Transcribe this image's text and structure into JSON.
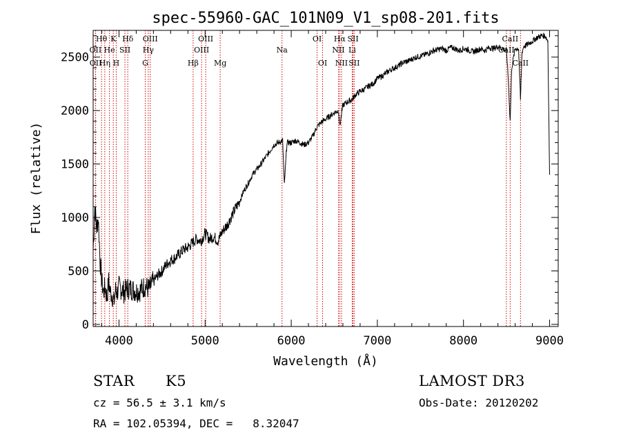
{
  "chart_data": {
    "type": "line",
    "title": "spec-55960-GAC_101N09_V1_sp08-201.fits",
    "xlabel": "Wavelength (Å)",
    "ylabel": "Flux (relative)",
    "xlim": [
      3700,
      9100
    ],
    "ylim": [
      -20,
      2750
    ],
    "xticks": [
      4000,
      5000,
      6000,
      7000,
      8000,
      9000
    ],
    "yticks": [
      0,
      500,
      1000,
      1500,
      2000,
      2500
    ],
    "xtick_labels": [
      "4000",
      "5000",
      "6000",
      "7000",
      "8000",
      "9000"
    ],
    "ytick_labels": [
      "0",
      "500",
      "1000",
      "1500",
      "2000",
      "2500"
    ],
    "series": [
      {
        "name": "spectrum",
        "x": [
          3700,
          3720,
          3740,
          3760,
          3780,
          3800,
          3820,
          3840,
          3860,
          3880,
          3900,
          3920,
          3940,
          3960,
          3980,
          4000,
          4030,
          4060,
          4100,
          4150,
          4200,
          4250,
          4300,
          4350,
          4400,
          4450,
          4500,
          4550,
          4600,
          4650,
          4700,
          4750,
          4800,
          4850,
          4900,
          4950,
          5000,
          5050,
          5100,
          5150,
          5200,
          5250,
          5300,
          5350,
          5400,
          5450,
          5500,
          5550,
          5600,
          5650,
          5700,
          5750,
          5800,
          5850,
          5900,
          5920,
          5950,
          6000,
          6050,
          6100,
          6150,
          6200,
          6250,
          6300,
          6350,
          6400,
          6450,
          6500,
          6550,
          6563,
          6600,
          6650,
          6700,
          6750,
          6800,
          6850,
          6900,
          6950,
          7000,
          7050,
          7100,
          7150,
          7200,
          7250,
          7300,
          7350,
          7400,
          7450,
          7500,
          7550,
          7600,
          7650,
          7700,
          7750,
          7800,
          7850,
          7900,
          7950,
          8000,
          8050,
          8100,
          8150,
          8200,
          8250,
          8300,
          8350,
          8400,
          8450,
          8500,
          8520,
          8542,
          8560,
          8600,
          8640,
          8662,
          8680,
          8700,
          8750,
          8800,
          8850,
          8900,
          8950,
          8980,
          9000
        ],
        "y": [
          700,
          1100,
          900,
          1000,
          600,
          400,
          300,
          350,
          250,
          400,
          300,
          280,
          200,
          320,
          300,
          350,
          330,
          300,
          340,
          330,
          310,
          320,
          360,
          330,
          400,
          460,
          500,
          560,
          600,
          620,
          660,
          700,
          720,
          760,
          800,
          780,
          850,
          800,
          820,
          780,
          870,
          920,
          1000,
          1080,
          1150,
          1250,
          1320,
          1400,
          1450,
          1500,
          1560,
          1620,
          1680,
          1700,
          1720,
          1300,
          1700,
          1700,
          1720,
          1700,
          1680,
          1700,
          1760,
          1850,
          1890,
          1920,
          1950,
          1980,
          2000,
          1850,
          2050,
          2080,
          2100,
          2150,
          2180,
          2200,
          2230,
          2250,
          2300,
          2320,
          2350,
          2380,
          2400,
          2420,
          2450,
          2460,
          2480,
          2500,
          2510,
          2520,
          2540,
          2560,
          2570,
          2580,
          2560,
          2590,
          2580,
          2560,
          2580,
          2570,
          2550,
          2560,
          2580,
          2560,
          2590,
          2580,
          2600,
          2580,
          2560,
          2300,
          1900,
          2400,
          2580,
          2580,
          2100,
          2550,
          2600,
          2620,
          2650,
          2680,
          2700,
          2700,
          2650,
          1400
        ]
      }
    ],
    "line_markers": [
      {
        "label": "Hθ",
        "wavelength": 3797,
        "row": 1
      },
      {
        "label": "OII",
        "wavelength": 3727,
        "row": 2
      },
      {
        "label": "OII",
        "wavelength": 3729,
        "row": 3
      },
      {
        "label": "Hη",
        "wavelength": 3835,
        "row": 3
      },
      {
        "label": "He",
        "wavelength": 3889,
        "row": 2
      },
      {
        "label": "K",
        "wavelength": 3934,
        "row": 1
      },
      {
        "label": "H",
        "wavelength": 3968,
        "row": 3
      },
      {
        "label": "SII",
        "wavelength": 4069,
        "row": 2
      },
      {
        "label": "Hδ",
        "wavelength": 4102,
        "row": 1
      },
      {
        "label": "OIII",
        "wavelength": 4363,
        "row": 1
      },
      {
        "label": "Hγ",
        "wavelength": 4340,
        "row": 2
      },
      {
        "label": "G",
        "wavelength": 4305,
        "row": 3
      },
      {
        "label": "Hβ",
        "wavelength": 4861,
        "row": 3
      },
      {
        "label": "OIII",
        "wavelength": 4959,
        "row": 2
      },
      {
        "label": "OIII",
        "wavelength": 5007,
        "row": 1
      },
      {
        "label": "Mg",
        "wavelength": 5175,
        "row": 3
      },
      {
        "label": "Na",
        "wavelength": 5893,
        "row": 2
      },
      {
        "label": "OI",
        "wavelength": 6300,
        "row": 1
      },
      {
        "label": "OI",
        "wavelength": 6364,
        "row": 3
      },
      {
        "label": "Hα",
        "wavelength": 6563,
        "row": 1
      },
      {
        "label": "NII",
        "wavelength": 6548,
        "row": 2
      },
      {
        "label": "NII",
        "wavelength": 6584,
        "row": 3
      },
      {
        "label": "SII",
        "wavelength": 6717,
        "row": 1
      },
      {
        "label": "Li",
        "wavelength": 6708,
        "row": 2
      },
      {
        "label": "SII",
        "wavelength": 6731,
        "row": 3
      },
      {
        "label": "CaII",
        "wavelength": 8498,
        "row": 2
      },
      {
        "label": "CaII",
        "wavelength": 8542,
        "row": 1
      },
      {
        "label": "CaII",
        "wavelength": 8662,
        "row": 3
      }
    ]
  },
  "info": {
    "class": "STAR",
    "subclass": "K5",
    "survey": "LAMOST DR3",
    "cz": "cz = 56.5 ± 3.1 km/s",
    "obs_date": "Obs-Date: 20120202",
    "coords": "RA = 102.05394, DEC =   8.32047"
  },
  "colors": {
    "axes": "#000000",
    "spectrum": "#000000",
    "markers": "#cc0000"
  }
}
